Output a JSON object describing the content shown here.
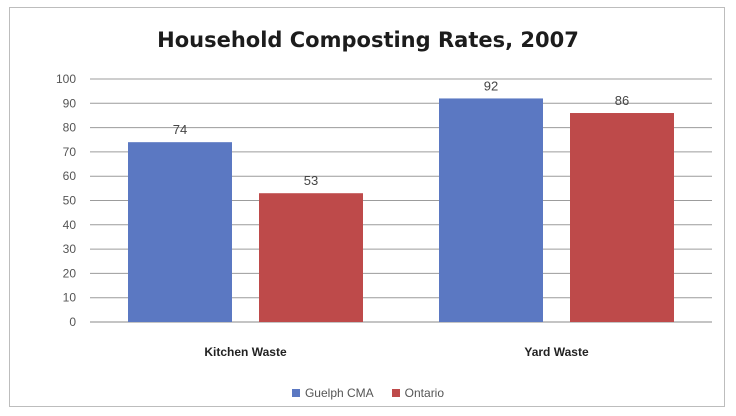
{
  "chart_data": {
    "type": "bar",
    "title": "Household Composting Rates, 2007",
    "xlabel": "",
    "ylabel": "",
    "categories": [
      "Kitchen Waste",
      "Yard Waste"
    ],
    "series": [
      {
        "name": "Guelph CMA",
        "values": [
          74,
          92
        ],
        "color": "#5b78c2"
      },
      {
        "name": "Ontario",
        "values": [
          53,
          86
        ],
        "color": "#be4a4a"
      }
    ],
    "ylim": [
      0,
      100
    ],
    "yticks": [
      "0",
      "10",
      "20",
      "30",
      "40",
      "50",
      "60",
      "70",
      "80",
      "90",
      "100"
    ],
    "grid": true,
    "legend_position": "bottom"
  }
}
